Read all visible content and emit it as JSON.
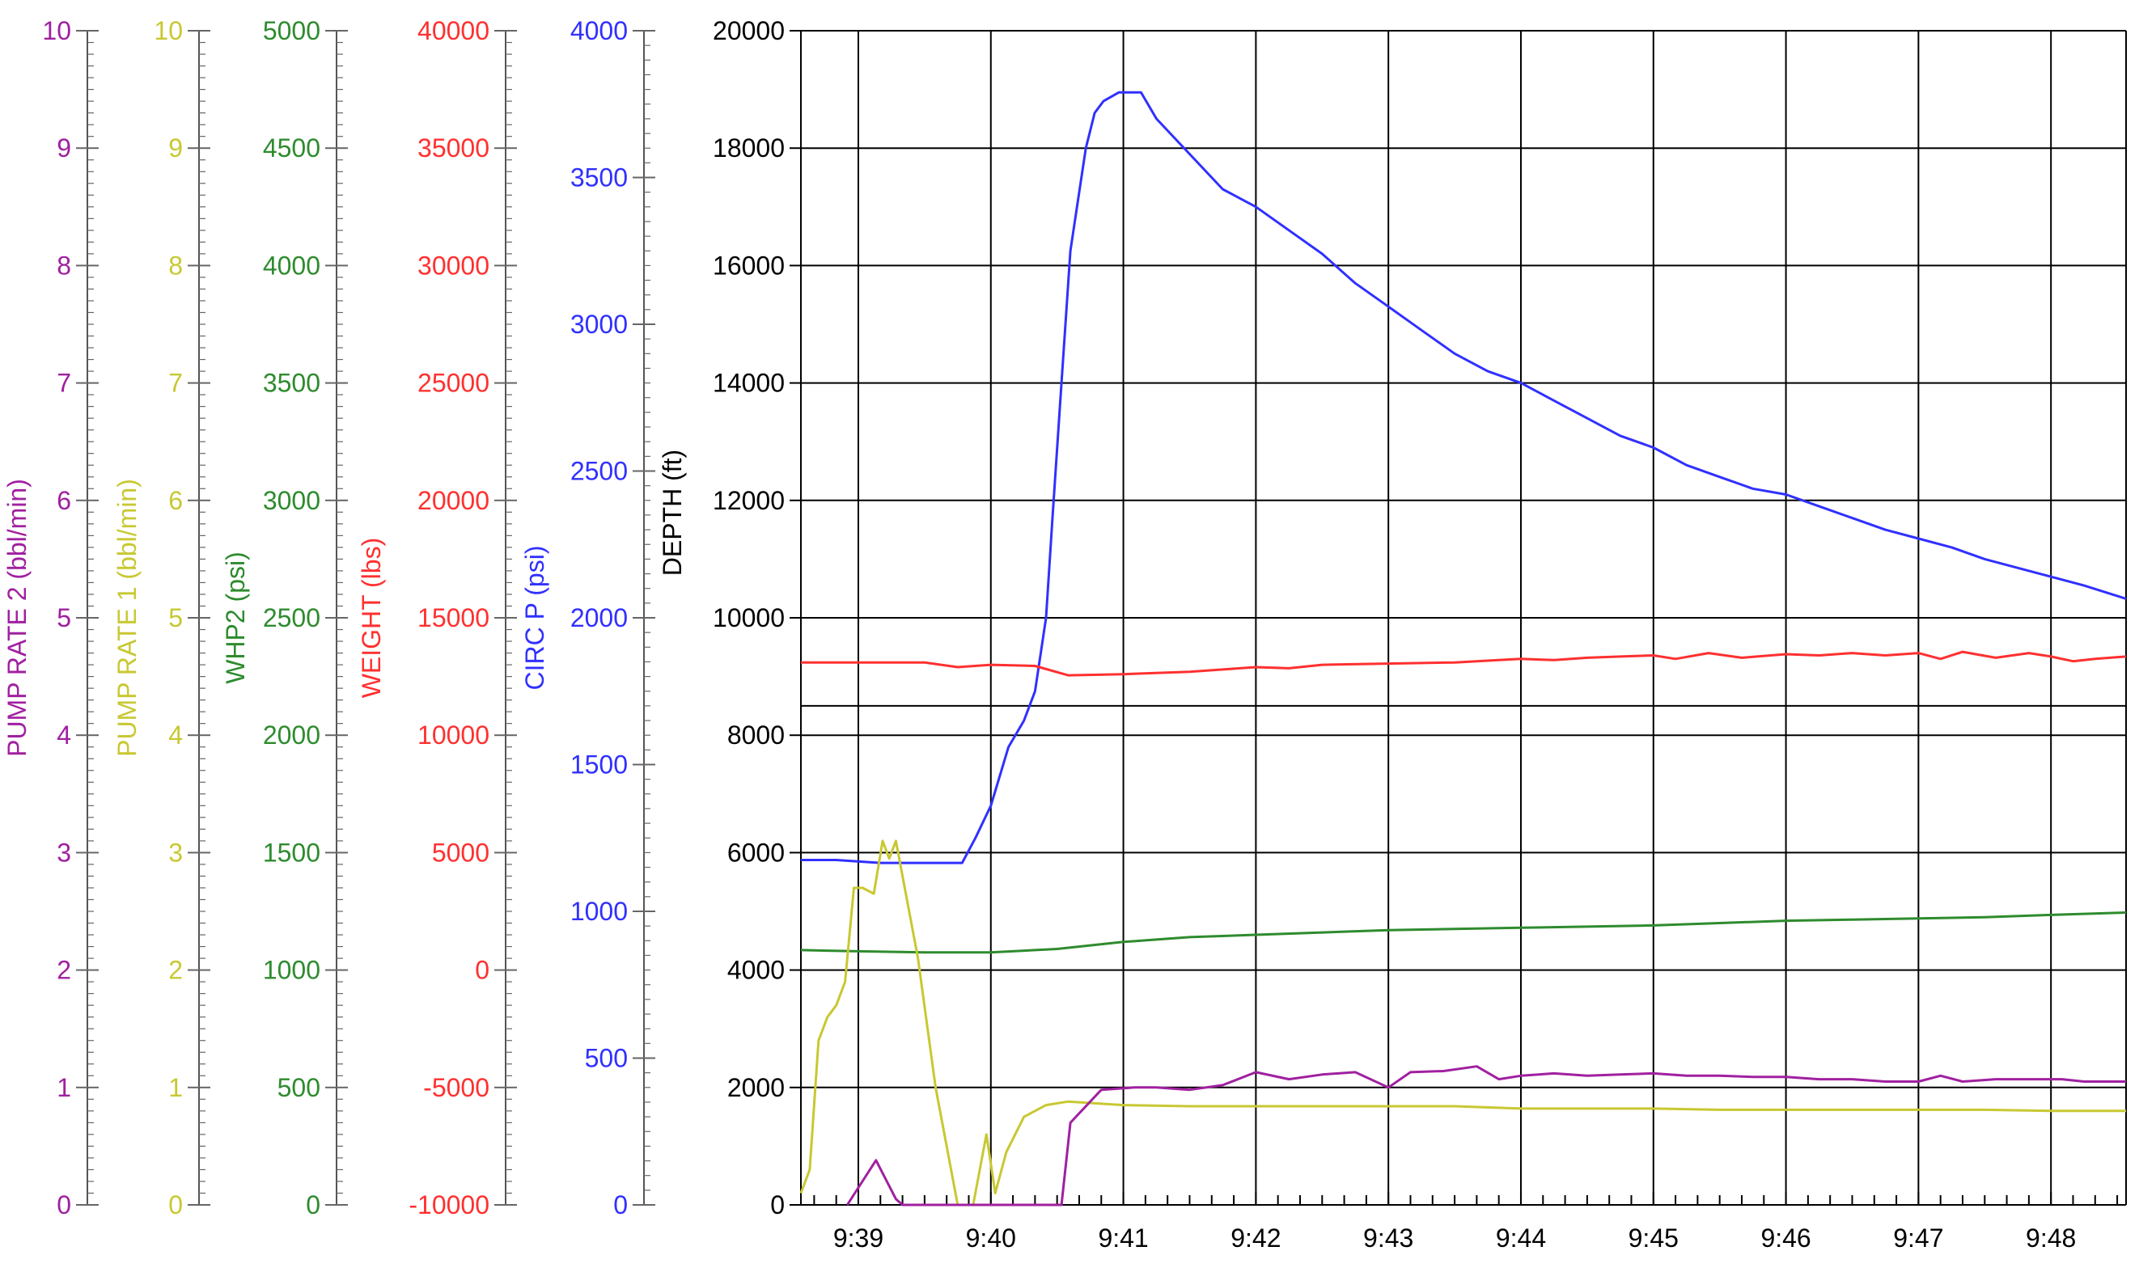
{
  "chart_data": {
    "type": "line",
    "grid": true,
    "x": {
      "unit": "clock time",
      "range": [
        "9:38:34",
        "9:48:34"
      ],
      "tick_labels": [
        "9:39",
        "9:40",
        "9:41",
        "9:42",
        "9:43",
        "9:44",
        "9:45",
        "9:46",
        "9:47",
        "9:48"
      ],
      "tick_times": [
        "9:39:00",
        "9:40:00",
        "9:41:00",
        "9:42:00",
        "9:43:00",
        "9:44:00",
        "9:45:00",
        "9:46:00",
        "9:47:00",
        "9:48:00"
      ]
    },
    "axes": [
      {
        "id": "pump2",
        "label": "PUMP RATE 2  (bbl/min)",
        "color": "#a020a0",
        "ylim": [
          0,
          10
        ],
        "ticks": [
          "0",
          "1",
          "2",
          "3",
          "4",
          "5",
          "6",
          "7",
          "8",
          "9",
          "10"
        ]
      },
      {
        "id": "pump1",
        "label": "PUMP RATE 1  (bbl/min)",
        "color": "#c8c832",
        "ylim": [
          0,
          10
        ],
        "ticks": [
          "0",
          "1",
          "2",
          "3",
          "4",
          "5",
          "6",
          "7",
          "8",
          "9",
          "10"
        ]
      },
      {
        "id": "whp2",
        "label": "WHP2  (psi)",
        "color": "#2e8b2e",
        "ylim": [
          0,
          5000
        ],
        "ticks": [
          "0",
          "500",
          "1000",
          "1500",
          "2000",
          "2500",
          "3000",
          "3500",
          "4000",
          "4500",
          "5000"
        ]
      },
      {
        "id": "weight",
        "label": "WEIGHT  (lbs)",
        "color": "#ff3030",
        "ylim": [
          -10000,
          40000
        ],
        "ticks": [
          "-10000",
          "-5000",
          "0",
          "5000",
          "10000",
          "15000",
          "20000",
          "25000",
          "30000",
          "35000",
          "40000"
        ]
      },
      {
        "id": "circ",
        "label": "CIRC P  (psi)",
        "color": "#3030ff",
        "ylim": [
          0,
          4000
        ],
        "ticks": [
          "0",
          "500",
          "1000",
          "1500",
          "2000",
          "2500",
          "3000",
          "3500",
          "4000"
        ]
      },
      {
        "id": "depth",
        "label": "DEPTH  (ft)",
        "color": "#000000",
        "ylim": [
          0,
          20000
        ],
        "ticks": [
          "0",
          "2000",
          "4000",
          "6000",
          "8000",
          "10000",
          "12000",
          "14000",
          "16000",
          "18000",
          "20000"
        ]
      }
    ],
    "series": [
      {
        "axis": "circ",
        "color": "#3030ff",
        "points": [
          [
            "9:38:34",
            1175
          ],
          [
            "9:38:50",
            1175
          ],
          [
            "9:39:10",
            1165
          ],
          [
            "9:39:40",
            1165
          ],
          [
            "9:39:47",
            1165
          ],
          [
            "9:39:53",
            1250
          ],
          [
            "9:40:00",
            1360
          ],
          [
            "9:40:08",
            1560
          ],
          [
            "9:40:15",
            1650
          ],
          [
            "9:40:20",
            1750
          ],
          [
            "9:40:25",
            2000
          ],
          [
            "9:40:28",
            2350
          ],
          [
            "9:40:32",
            2800
          ],
          [
            "9:40:36",
            3250
          ],
          [
            "9:40:40",
            3450
          ],
          [
            "9:40:43",
            3600
          ],
          [
            "9:40:47",
            3720
          ],
          [
            "9:40:51",
            3760
          ],
          [
            "9:40:58",
            3790
          ],
          [
            "9:41:08",
            3790
          ],
          [
            "9:41:15",
            3700
          ],
          [
            "9:41:30",
            3580
          ],
          [
            "9:41:45",
            3460
          ],
          [
            "9:42:00",
            3400
          ],
          [
            "9:42:15",
            3320
          ],
          [
            "9:42:30",
            3240
          ],
          [
            "9:42:45",
            3140
          ],
          [
            "9:43:00",
            3060
          ],
          [
            "9:43:15",
            2980
          ],
          [
            "9:43:30",
            2900
          ],
          [
            "9:43:45",
            2840
          ],
          [
            "9:44:00",
            2800
          ],
          [
            "9:44:15",
            2740
          ],
          [
            "9:44:30",
            2680
          ],
          [
            "9:44:45",
            2620
          ],
          [
            "9:45:00",
            2580
          ],
          [
            "9:45:15",
            2520
          ],
          [
            "9:45:30",
            2480
          ],
          [
            "9:45:45",
            2440
          ],
          [
            "9:46:00",
            2420
          ],
          [
            "9:46:15",
            2380
          ],
          [
            "9:46:30",
            2340
          ],
          [
            "9:46:45",
            2300
          ],
          [
            "9:47:00",
            2270
          ],
          [
            "9:47:15",
            2240
          ],
          [
            "9:47:30",
            2200
          ],
          [
            "9:47:45",
            2170
          ],
          [
            "9:48:00",
            2140
          ],
          [
            "9:48:15",
            2110
          ],
          [
            "9:48:34",
            2065
          ]
        ]
      },
      {
        "axis": "weight",
        "color": "#ff3030",
        "points": [
          [
            "9:38:34",
            13100
          ],
          [
            "9:39:00",
            13100
          ],
          [
            "9:39:30",
            13100
          ],
          [
            "9:39:45",
            12900
          ],
          [
            "9:40:00",
            13000
          ],
          [
            "9:40:20",
            12950
          ],
          [
            "9:40:35",
            12550
          ],
          [
            "9:41:00",
            12600
          ],
          [
            "9:41:30",
            12700
          ],
          [
            "9:41:45",
            12800
          ],
          [
            "9:42:00",
            12900
          ],
          [
            "9:42:15",
            12850
          ],
          [
            "9:42:30",
            13000
          ],
          [
            "9:43:00",
            13050
          ],
          [
            "9:43:30",
            13100
          ],
          [
            "9:44:00",
            13250
          ],
          [
            "9:44:15",
            13200
          ],
          [
            "9:44:30",
            13300
          ],
          [
            "9:44:45",
            13350
          ],
          [
            "9:45:00",
            13400
          ],
          [
            "9:45:10",
            13250
          ],
          [
            "9:45:25",
            13500
          ],
          [
            "9:45:40",
            13300
          ],
          [
            "9:46:00",
            13450
          ],
          [
            "9:46:15",
            13400
          ],
          [
            "9:46:30",
            13500
          ],
          [
            "9:46:45",
            13400
          ],
          [
            "9:47:00",
            13500
          ],
          [
            "9:47:10",
            13250
          ],
          [
            "9:47:20",
            13550
          ],
          [
            "9:47:35",
            13300
          ],
          [
            "9:47:50",
            13500
          ],
          [
            "9:48:00",
            13350
          ],
          [
            "9:48:10",
            13150
          ],
          [
            "9:48:20",
            13250
          ],
          [
            "9:48:34",
            13350
          ]
        ]
      },
      {
        "axis": "whp2",
        "color": "#2e8b2e",
        "points": [
          [
            "9:38:34",
            1085
          ],
          [
            "9:39:00",
            1080
          ],
          [
            "9:39:30",
            1075
          ],
          [
            "9:40:00",
            1075
          ],
          [
            "9:40:30",
            1090
          ],
          [
            "9:41:00",
            1120
          ],
          [
            "9:41:30",
            1140
          ],
          [
            "9:42:00",
            1150
          ],
          [
            "9:42:30",
            1160
          ],
          [
            "9:43:00",
            1170
          ],
          [
            "9:43:30",
            1175
          ],
          [
            "9:44:00",
            1180
          ],
          [
            "9:44:30",
            1185
          ],
          [
            "9:45:00",
            1190
          ],
          [
            "9:45:30",
            1200
          ],
          [
            "9:46:00",
            1210
          ],
          [
            "9:46:30",
            1215
          ],
          [
            "9:47:00",
            1220
          ],
          [
            "9:47:30",
            1225
          ],
          [
            "9:48:00",
            1235
          ],
          [
            "9:48:34",
            1245
          ]
        ]
      },
      {
        "axis": "pump1",
        "color": "#c8c832",
        "points": [
          [
            "9:38:34",
            0.1
          ],
          [
            "9:38:38",
            0.3
          ],
          [
            "9:38:42",
            1.4
          ],
          [
            "9:38:46",
            1.6
          ],
          [
            "9:38:50",
            1.7
          ],
          [
            "9:38:54",
            1.9
          ],
          [
            "9:38:58",
            2.7
          ],
          [
            "9:39:02",
            2.7
          ],
          [
            "9:39:07",
            2.65
          ],
          [
            "9:39:11",
            3.1
          ],
          [
            "9:39:14",
            2.95
          ],
          [
            "9:39:17",
            3.1
          ],
          [
            "9:39:20",
            2.8
          ],
          [
            "9:39:27",
            2.1
          ],
          [
            "9:39:35",
            1.0
          ],
          [
            "9:39:45",
            0.0
          ],
          [
            "9:39:52",
            0.0
          ],
          [
            "9:39:58",
            0.6
          ],
          [
            "9:40:02",
            0.1
          ],
          [
            "9:40:07",
            0.45
          ],
          [
            "9:40:15",
            0.75
          ],
          [
            "9:40:25",
            0.85
          ],
          [
            "9:40:35",
            0.88
          ],
          [
            "9:41:00",
            0.85
          ],
          [
            "9:41:30",
            0.84
          ],
          [
            "9:42:00",
            0.84
          ],
          [
            "9:42:30",
            0.84
          ],
          [
            "9:43:00",
            0.84
          ],
          [
            "9:43:30",
            0.84
          ],
          [
            "9:44:00",
            0.82
          ],
          [
            "9:44:30",
            0.82
          ],
          [
            "9:45:00",
            0.82
          ],
          [
            "9:45:30",
            0.81
          ],
          [
            "9:46:00",
            0.81
          ],
          [
            "9:46:30",
            0.81
          ],
          [
            "9:47:00",
            0.81
          ],
          [
            "9:47:30",
            0.81
          ],
          [
            "9:48:00",
            0.8
          ],
          [
            "9:48:34",
            0.8
          ]
        ]
      },
      {
        "axis": "pump2",
        "color": "#a020a0",
        "points": [
          [
            "9:38:55",
            0.0
          ],
          [
            "9:39:08",
            0.38
          ],
          [
            "9:39:17",
            0.05
          ],
          [
            "9:39:20",
            0.0
          ],
          [
            "9:40:28",
            0.0
          ],
          [
            "9:40:32",
            0.0
          ],
          [
            "9:40:36",
            0.7
          ],
          [
            "9:40:50",
            0.98
          ],
          [
            "9:41:05",
            1.0
          ],
          [
            "9:41:15",
            1.0
          ],
          [
            "9:41:30",
            0.98
          ],
          [
            "9:41:45",
            1.02
          ],
          [
            "9:42:00",
            1.13
          ],
          [
            "9:42:15",
            1.07
          ],
          [
            "9:42:30",
            1.11
          ],
          [
            "9:42:45",
            1.13
          ],
          [
            "9:43:00",
            1.0
          ],
          [
            "9:43:10",
            1.13
          ],
          [
            "9:43:25",
            1.14
          ],
          [
            "9:43:40",
            1.18
          ],
          [
            "9:43:50",
            1.07
          ],
          [
            "9:44:00",
            1.1
          ],
          [
            "9:44:15",
            1.12
          ],
          [
            "9:44:30",
            1.1
          ],
          [
            "9:44:45",
            1.11
          ],
          [
            "9:45:00",
            1.12
          ],
          [
            "9:45:15",
            1.1
          ],
          [
            "9:45:30",
            1.1
          ],
          [
            "9:45:45",
            1.09
          ],
          [
            "9:46:00",
            1.09
          ],
          [
            "9:46:15",
            1.07
          ],
          [
            "9:46:30",
            1.07
          ],
          [
            "9:46:45",
            1.05
          ],
          [
            "9:47:00",
            1.05
          ],
          [
            "9:47:10",
            1.1
          ],
          [
            "9:47:20",
            1.05
          ],
          [
            "9:47:35",
            1.07
          ],
          [
            "9:47:50",
            1.07
          ],
          [
            "9:48:05",
            1.07
          ],
          [
            "9:48:15",
            1.05
          ],
          [
            "9:48:34",
            1.05
          ]
        ]
      }
    ]
  }
}
